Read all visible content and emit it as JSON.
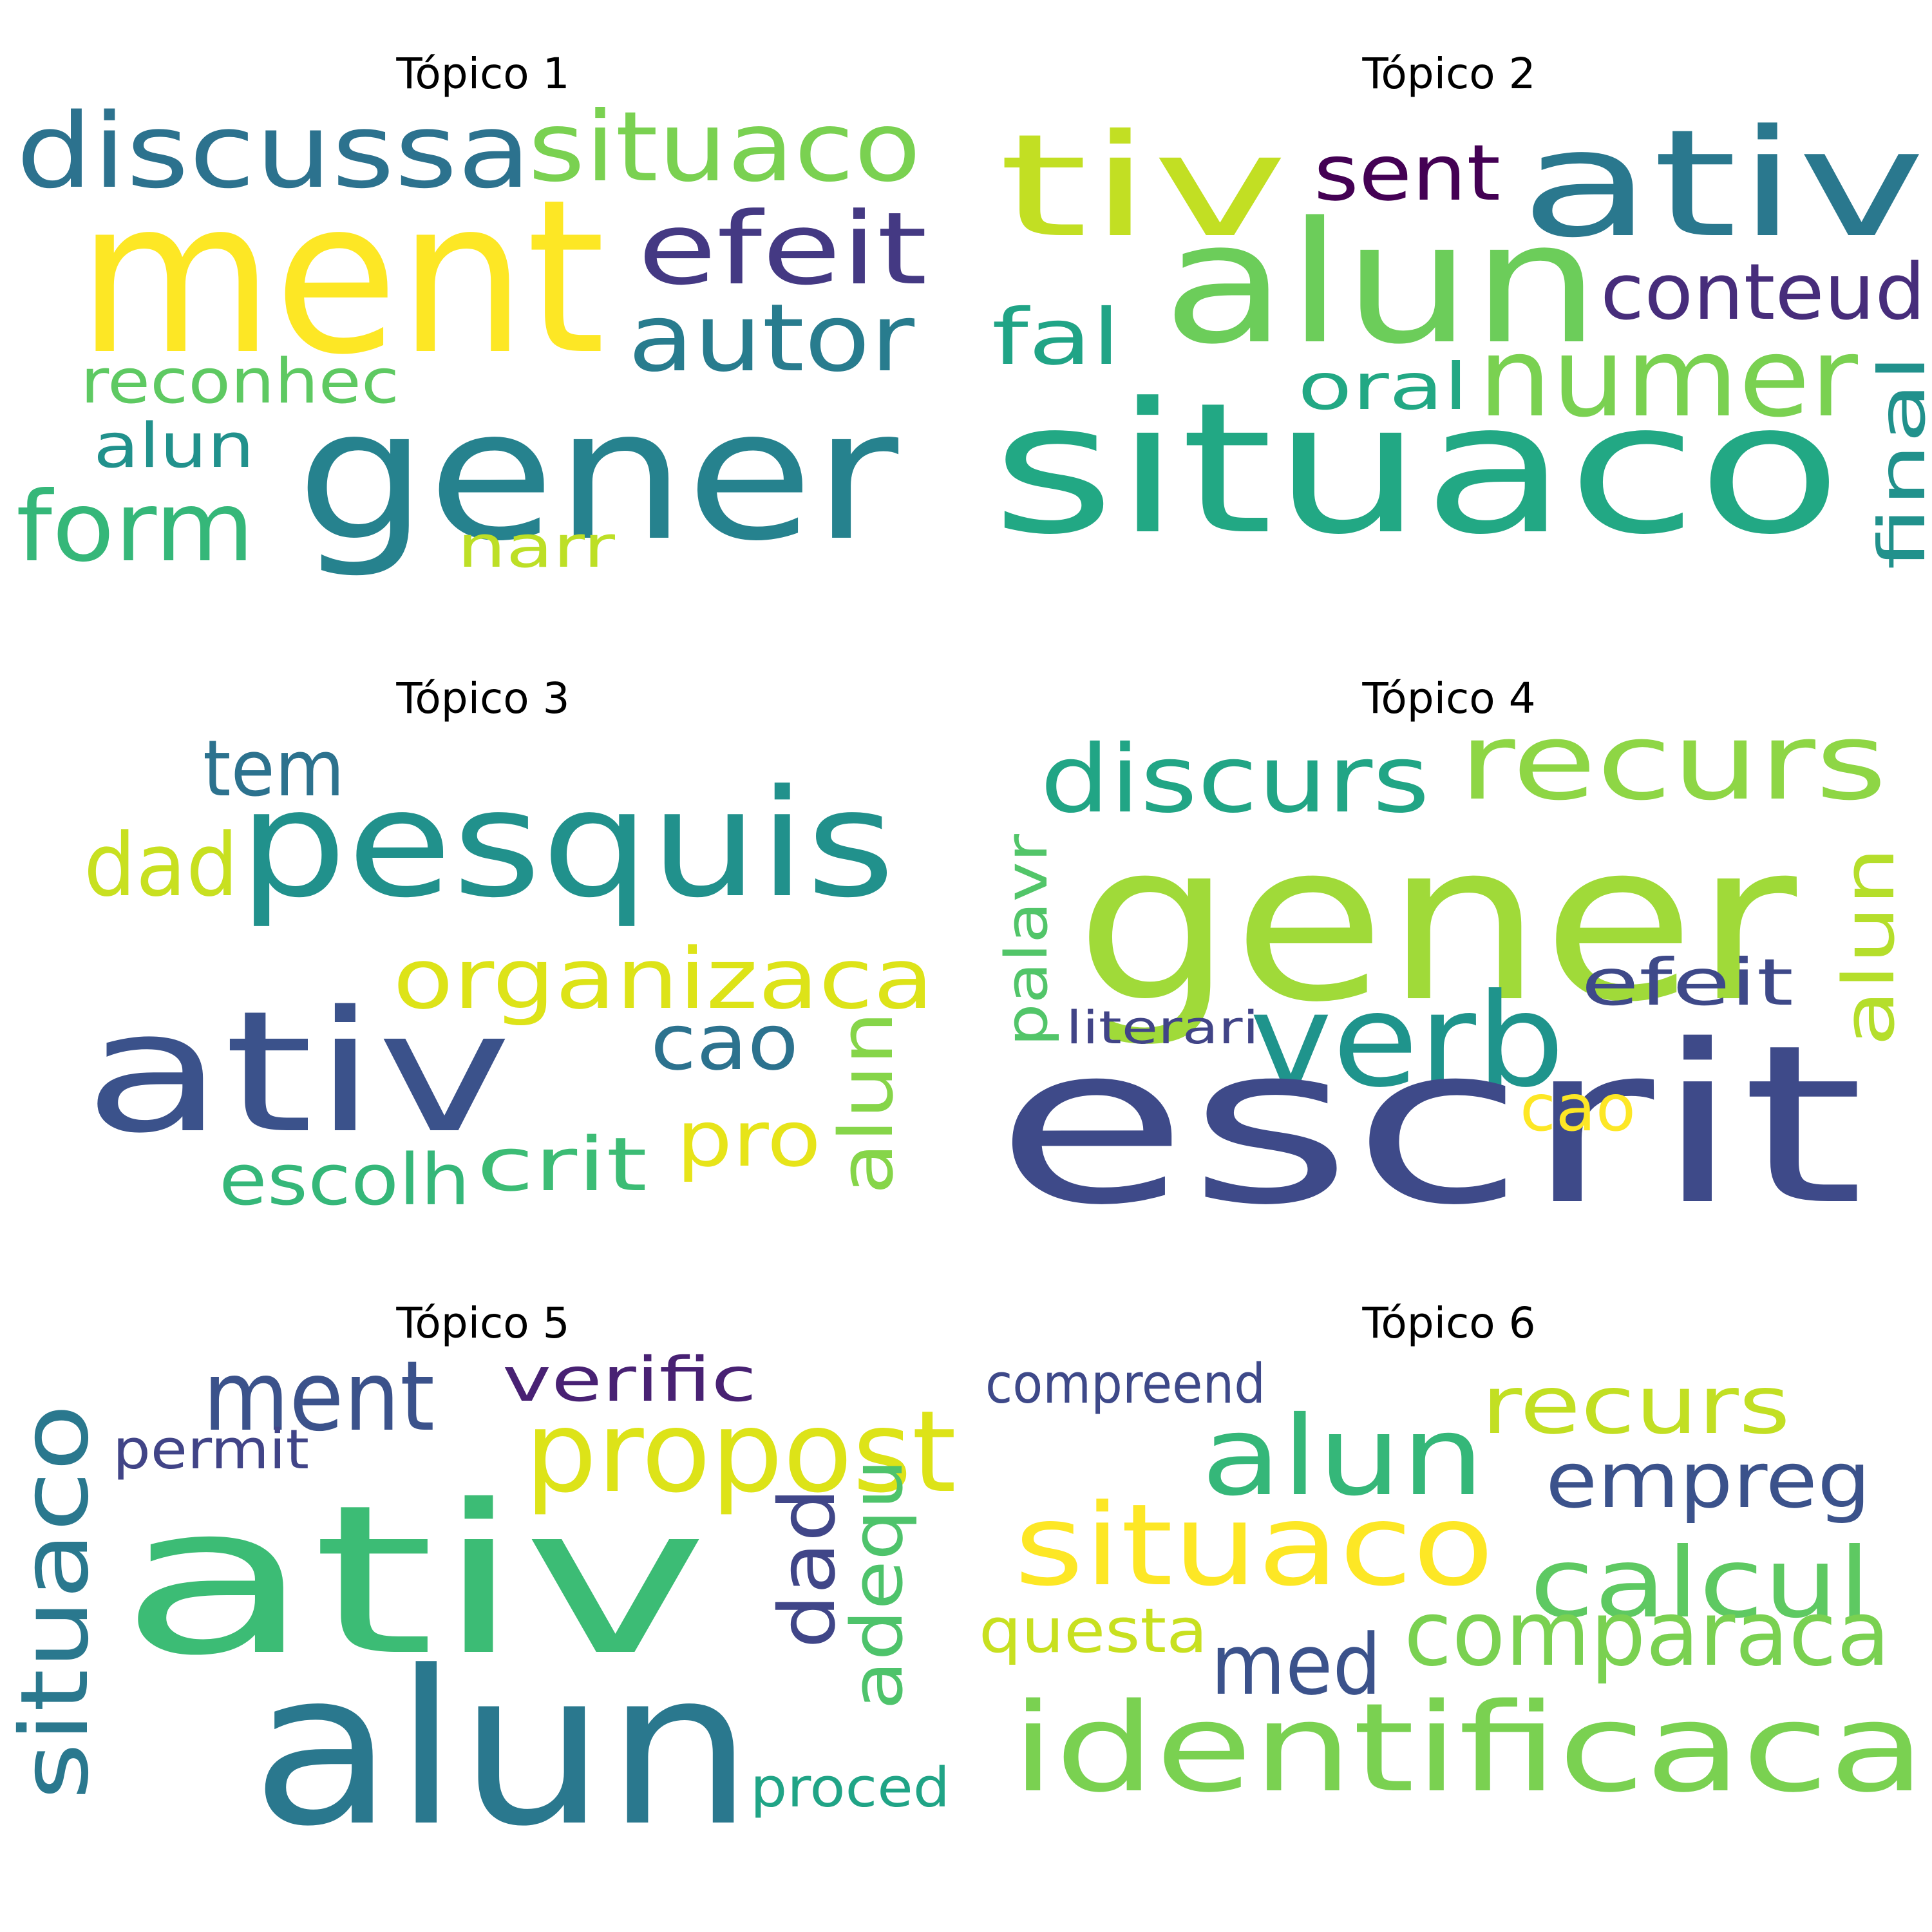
{
  "topics": [
    {
      "title": "Tópico 1",
      "words": [
        {
          "text": "ment",
          "color": "#fde725"
        },
        {
          "text": "gener",
          "color": "#26828e"
        },
        {
          "text": "discussa",
          "color": "#2c728e"
        },
        {
          "text": "situaco",
          "color": "#7ad151"
        },
        {
          "text": "efeit",
          "color": "#443983"
        },
        {
          "text": "autor",
          "color": "#287c8e"
        },
        {
          "text": "reconhec",
          "color": "#5ec962"
        },
        {
          "text": "alun",
          "color": "#21918c"
        },
        {
          "text": "form",
          "color": "#35b779"
        },
        {
          "text": "narr",
          "color": "#bddf26"
        }
      ]
    },
    {
      "title": "Tópico 2",
      "words": [
        {
          "text": "tiv",
          "color": "#c2df23"
        },
        {
          "text": "sent",
          "color": "#440154"
        },
        {
          "text": "ativ",
          "color": "#2a788e"
        },
        {
          "text": "alun",
          "color": "#6ccd5a"
        },
        {
          "text": "conteud",
          "color": "#472d7b"
        },
        {
          "text": "fal",
          "color": "#20a486"
        },
        {
          "text": "numer",
          "color": "#7ad151"
        },
        {
          "text": "oral",
          "color": "#22a884"
        },
        {
          "text": "situaco",
          "color": "#22a884"
        },
        {
          "text": "final",
          "color": "#21918c"
        }
      ]
    },
    {
      "title": "Tópico 3",
      "words": [
        {
          "text": "tem",
          "color": "#2c728e"
        },
        {
          "text": "pesquis",
          "color": "#21918c"
        },
        {
          "text": "dad",
          "color": "#c8e020"
        },
        {
          "text": "organizaca",
          "color": "#dde318"
        },
        {
          "text": "ativ",
          "color": "#3b528b"
        },
        {
          "text": "cao",
          "color": "#2c728e"
        },
        {
          "text": "alun",
          "color": "#86d549"
        },
        {
          "text": "pro",
          "color": "#e7e419"
        },
        {
          "text": "escolh",
          "color": "#35b779"
        },
        {
          "text": "crit",
          "color": "#3cbc75"
        }
      ]
    },
    {
      "title": "Tópico 4",
      "words": [
        {
          "text": "discurs",
          "color": "#21a585"
        },
        {
          "text": "recurs",
          "color": "#8ed645"
        },
        {
          "text": "gener",
          "color": "#a0da39"
        },
        {
          "text": "palavr",
          "color": "#52c569"
        },
        {
          "text": "verb",
          "color": "#1f948c"
        },
        {
          "text": "efeit",
          "color": "#3e4989"
        },
        {
          "text": "alun",
          "color": "#b5de2b"
        },
        {
          "text": "literari",
          "color": "#414487"
        },
        {
          "text": "escrit",
          "color": "#3e4a89"
        },
        {
          "text": "cao",
          "color": "#fde725"
        }
      ]
    },
    {
      "title": "Tópico 5",
      "words": [
        {
          "text": "ment",
          "color": "#3b528b"
        },
        {
          "text": "verific",
          "color": "#482173"
        },
        {
          "text": "propost",
          "color": "#dde318"
        },
        {
          "text": "permit",
          "color": "#414487"
        },
        {
          "text": "situaco",
          "color": "#2a788e"
        },
        {
          "text": "ativ",
          "color": "#3cbc75"
        },
        {
          "text": "dad",
          "color": "#404688"
        },
        {
          "text": "adequ",
          "color": "#4ec36b"
        },
        {
          "text": "alun",
          "color": "#2a788e"
        },
        {
          "text": "proced",
          "color": "#20a486"
        }
      ]
    },
    {
      "title": "Tópico 6",
      "words": [
        {
          "text": "compreend",
          "color": "#3e4989"
        },
        {
          "text": "recurs",
          "color": "#c2df23"
        },
        {
          "text": "alun",
          "color": "#35b779"
        },
        {
          "text": "empreg",
          "color": "#3b528b"
        },
        {
          "text": "situaco",
          "color": "#fde725"
        },
        {
          "text": "calcul",
          "color": "#5ec962"
        },
        {
          "text": "questa",
          "color": "#c8e020"
        },
        {
          "text": "med",
          "color": "#3b528b"
        },
        {
          "text": "comparaca",
          "color": "#7ad151"
        },
        {
          "text": "identificaca",
          "color": "#7ad151"
        }
      ]
    }
  ]
}
